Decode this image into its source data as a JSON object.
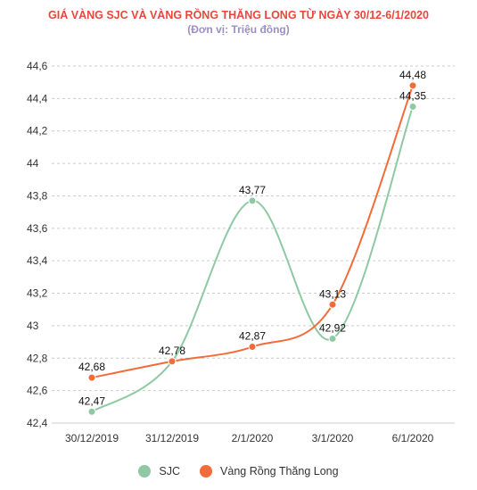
{
  "chart_data": {
    "type": "line",
    "title": "GIÁ VÀNG SJC VÀ VÀNG RỒNG THĂNG LONG TỪ NGÀY 30/12-6/1/2020",
    "subtitle": "(Đơn vị: Triệu đồng)",
    "categories": [
      "30/12/2019",
      "31/12/2019",
      "2/1/2020",
      "3/1/2020",
      "6/1/2020"
    ],
    "series": [
      {
        "name": "SJC",
        "color": "#8fc9a3",
        "values": [
          42.47,
          42.78,
          43.77,
          42.92,
          44.35
        ],
        "labels": [
          "42,47",
          "42,78",
          "43,77",
          "42,92",
          "44,35"
        ]
      },
      {
        "name": "Vàng Rồng Thăng Long",
        "color": "#f26b38",
        "values": [
          42.68,
          42.78,
          42.87,
          43.13,
          44.48
        ],
        "labels": [
          "42,68",
          "",
          "42,87",
          "43,13",
          "44,48"
        ]
      }
    ],
    "yticks": [
      "42,4",
      "42,6",
      "42,8",
      "43",
      "43,2",
      "43,4",
      "43,6",
      "43,8",
      "44",
      "44,2",
      "44,4",
      "44,6"
    ],
    "ylim": [
      42.4,
      44.6
    ],
    "grid": "horizontal dashed",
    "legend": "bottom",
    "colors": {
      "title": "#e8463a",
      "subtitle": "#9b8fc4",
      "grid": "#cccccc"
    }
  }
}
